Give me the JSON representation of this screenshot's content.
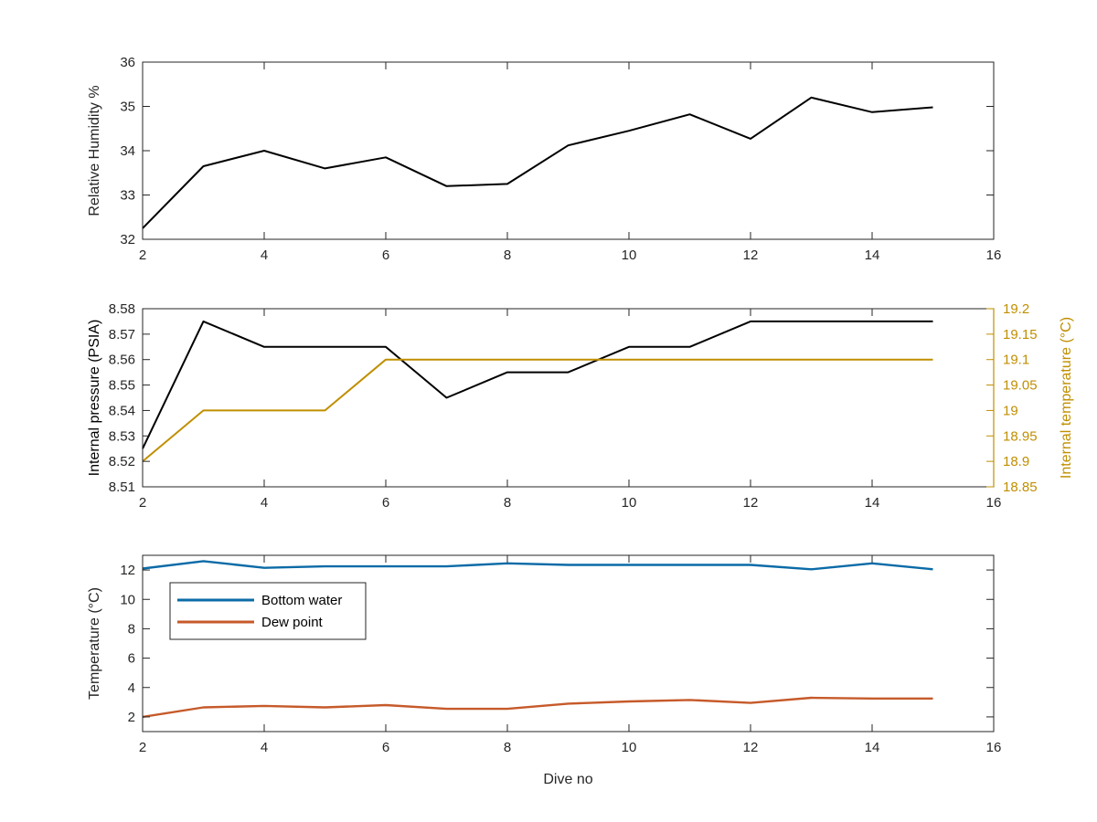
{
  "chart_data": [
    {
      "type": "line",
      "xlabel": "",
      "ylabel": "Relative Humidity %",
      "xlim": [
        2,
        16
      ],
      "ylim": [
        32,
        36
      ],
      "xticks": [
        "2",
        "4",
        "6",
        "8",
        "10",
        "12",
        "14",
        "16"
      ],
      "yticks": [
        "32",
        "33",
        "34",
        "35",
        "36"
      ],
      "x": [
        2,
        3,
        4,
        5,
        6,
        7,
        8,
        9,
        10,
        11,
        12,
        13,
        14,
        15
      ],
      "series": [
        {
          "values": [
            32.25,
            33.65,
            34.0,
            33.6,
            33.85,
            33.2,
            33.25,
            34.12,
            34.45,
            34.82,
            34.27,
            35.2,
            34.87,
            34.98
          ],
          "color": "#000000"
        }
      ],
      "grid": false
    },
    {
      "type": "line",
      "xlabel": "",
      "ylabel": "Internal pressure (PSIA)",
      "ylabel_right": "Internal temperature (°C)",
      "xlim": [
        2,
        16
      ],
      "ylim": [
        8.51,
        8.58
      ],
      "ylim_right": [
        18.85,
        19.2
      ],
      "xticks": [
        "2",
        "4",
        "6",
        "8",
        "10",
        "12",
        "14",
        "16"
      ],
      "yticks": [
        "8.51",
        "8.52",
        "8.53",
        "8.54",
        "8.55",
        "8.56",
        "8.57",
        "8.58"
      ],
      "yticks_right": [
        "18.85",
        "18.9",
        "18.95",
        "19",
        "19.05",
        "19.1",
        "19.15",
        "19.2"
      ],
      "x": [
        2,
        3,
        4,
        5,
        6,
        7,
        8,
        9,
        10,
        11,
        12,
        13,
        14,
        15
      ],
      "series": [
        {
          "axis": "left",
          "values": [
            8.525,
            8.575,
            8.565,
            8.565,
            8.565,
            8.545,
            8.555,
            8.555,
            8.565,
            8.565,
            8.575,
            8.575,
            8.575,
            8.575
          ],
          "color": "#000000"
        },
        {
          "axis": "right",
          "values": [
            18.9,
            19.0,
            19.0,
            19.0,
            19.1,
            19.1,
            19.1,
            19.1,
            19.1,
            19.1,
            19.1,
            19.1,
            19.1,
            19.1
          ],
          "color": "#c08f00"
        }
      ],
      "grid": false
    },
    {
      "type": "line",
      "xlabel": "Dive no",
      "ylabel": "Temperature (°C)",
      "xlim": [
        2,
        16
      ],
      "ylim": [
        1,
        13
      ],
      "xticks": [
        "2",
        "4",
        "6",
        "8",
        "10",
        "12",
        "14",
        "16"
      ],
      "yticks": [
        "2",
        "4",
        "6",
        "8",
        "10",
        "12"
      ],
      "x": [
        2,
        3,
        4,
        5,
        6,
        7,
        8,
        9,
        10,
        11,
        12,
        13,
        14,
        15
      ],
      "series": [
        {
          "name": "Bottom water",
          "values": [
            12.1,
            12.6,
            12.15,
            12.25,
            12.25,
            12.25,
            12.45,
            12.35,
            12.35,
            12.35,
            12.35,
            12.05,
            12.45,
            12.05
          ],
          "color": "#0b6ba7"
        },
        {
          "name": "Dew point",
          "values": [
            2.0,
            2.65,
            2.75,
            2.65,
            2.8,
            2.55,
            2.55,
            2.9,
            3.05,
            3.15,
            2.95,
            3.3,
            3.25,
            3.25
          ],
          "color": "#c65a2a"
        }
      ],
      "legend": "top-left",
      "grid": false
    }
  ]
}
